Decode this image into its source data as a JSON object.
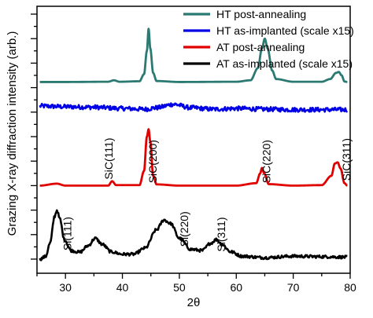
{
  "chart_data": {
    "type": "line",
    "xlabel": "2θ",
    "ylabel": "Grazing X-ray diffraction intensity (arb.)",
    "xlim": [
      25,
      80
    ],
    "xticks": [
      30,
      40,
      50,
      60,
      70,
      80
    ],
    "x_tick_labels": [
      "30",
      "40",
      "50",
      "60",
      "70",
      "80"
    ],
    "ylim": [
      0,
      10
    ],
    "y_tick_labels_shown": false,
    "grid": false,
    "legend_position": "top-right",
    "series": [
      {
        "name": "HT post-annealing",
        "color": "#2a7a72",
        "style": "smooth",
        "points": [
          [
            25.5,
            7.23
          ],
          [
            30,
            7.23
          ],
          [
            37.5,
            7.24
          ],
          [
            38.5,
            7.3
          ],
          [
            39.5,
            7.24
          ],
          [
            43,
            7.26
          ],
          [
            43.8,
            7.55
          ],
          [
            44.3,
            8.5
          ],
          [
            44.6,
            9.4
          ],
          [
            44.9,
            8.6
          ],
          [
            45.4,
            7.6
          ],
          [
            46,
            7.27
          ],
          [
            50,
            7.23
          ],
          [
            60,
            7.24
          ],
          [
            62.5,
            7.3
          ],
          [
            63.8,
            7.8
          ],
          [
            64.5,
            8.6
          ],
          [
            65,
            9.0
          ],
          [
            65.5,
            8.6
          ],
          [
            66.3,
            7.7
          ],
          [
            67,
            7.35
          ],
          [
            70,
            7.24
          ],
          [
            75,
            7.24
          ],
          [
            76.5,
            7.35
          ],
          [
            77.5,
            7.6
          ],
          [
            78,
            7.64
          ],
          [
            78.5,
            7.5
          ],
          [
            79,
            7.25
          ],
          [
            79.5,
            7.23
          ]
        ]
      },
      {
        "name": "HT as-implanted (scale x15)",
        "color": "#0000e6",
        "style": "noisy",
        "points": [
          [
            25.5,
            6.25
          ],
          [
            30,
            6.22
          ],
          [
            35,
            6.2
          ],
          [
            40,
            6.15
          ],
          [
            44,
            6.12
          ],
          [
            46,
            6.18
          ],
          [
            49,
            6.32
          ],
          [
            52,
            6.18
          ],
          [
            56,
            6.12
          ],
          [
            60,
            6.15
          ],
          [
            65,
            6.12
          ],
          [
            70,
            6.1
          ],
          [
            75,
            6.1
          ],
          [
            79.5,
            6.1
          ]
        ],
        "noise_amplitude": 0.09
      },
      {
        "name": "AT post-annealing",
        "color": "#e00000",
        "style": "smooth",
        "points": [
          [
            25.5,
            3.0
          ],
          [
            28.5,
            3.08
          ],
          [
            30,
            3.0
          ],
          [
            37.5,
            3.0
          ],
          [
            38.2,
            3.18
          ],
          [
            38.9,
            3.02
          ],
          [
            43,
            3.02
          ],
          [
            43.8,
            3.6
          ],
          [
            44.3,
            5.0
          ],
          [
            44.6,
            5.3
          ],
          [
            44.9,
            4.8
          ],
          [
            45.4,
            3.4
          ],
          [
            46,
            3.05
          ],
          [
            50,
            3.0
          ],
          [
            60,
            3.0
          ],
          [
            63.5,
            3.1
          ],
          [
            64.2,
            3.5
          ],
          [
            64.5,
            3.72
          ],
          [
            64.9,
            3.5
          ],
          [
            65.7,
            3.06
          ],
          [
            70,
            3.0
          ],
          [
            75,
            3.02
          ],
          [
            76.7,
            3.4
          ],
          [
            77.3,
            3.9
          ],
          [
            77.8,
            3.95
          ],
          [
            78.3,
            3.7
          ],
          [
            79,
            3.1
          ],
          [
            79.5,
            3.0
          ]
        ]
      },
      {
        "name": "AT as-implanted (scale x15)",
        "color": "#000000",
        "style": "noisy",
        "points": [
          [
            25.5,
            0.0
          ],
          [
            26.5,
            0.1
          ],
          [
            27.3,
            0.65
          ],
          [
            28.1,
            1.75
          ],
          [
            28.5,
            2.0
          ],
          [
            29,
            1.65
          ],
          [
            29.8,
            0.8
          ],
          [
            31,
            0.35
          ],
          [
            32.5,
            0.28
          ],
          [
            34,
            0.55
          ],
          [
            35.2,
            0.85
          ],
          [
            36.5,
            0.6
          ],
          [
            38,
            0.3
          ],
          [
            40,
            0.2
          ],
          [
            42,
            0.2
          ],
          [
            44,
            0.45
          ],
          [
            46,
            1.2
          ],
          [
            47.3,
            1.6
          ],
          [
            48.5,
            1.45
          ],
          [
            50,
            0.85
          ],
          [
            52,
            0.4
          ],
          [
            54,
            0.35
          ],
          [
            55.5,
            0.65
          ],
          [
            56.5,
            0.8
          ],
          [
            57.5,
            0.6
          ],
          [
            59,
            0.3
          ],
          [
            61,
            0.12
          ],
          [
            65,
            0.06
          ],
          [
            70,
            0.12
          ],
          [
            75,
            0.1
          ],
          [
            79.5,
            0.08
          ]
        ],
        "noise_amplitude": 0.06
      }
    ],
    "annotations": [
      {
        "text": "Si(111)",
        "x": 31.0,
        "y": 0.35
      },
      {
        "text": "SiC(111)",
        "x": 38.3,
        "y": 3.25
      },
      {
        "text": "SiC(200)",
        "x": 46.0,
        "y": 3.1
      },
      {
        "text": "Si(220)",
        "x": 51.5,
        "y": 0.5
      },
      {
        "text": "Si(311)",
        "x": 58.0,
        "y": 0.3
      },
      {
        "text": "SiC(220)",
        "x": 66.0,
        "y": 3.1
      },
      {
        "text": "SiC(311)",
        "x": 80.0,
        "y": 3.2
      }
    ]
  }
}
